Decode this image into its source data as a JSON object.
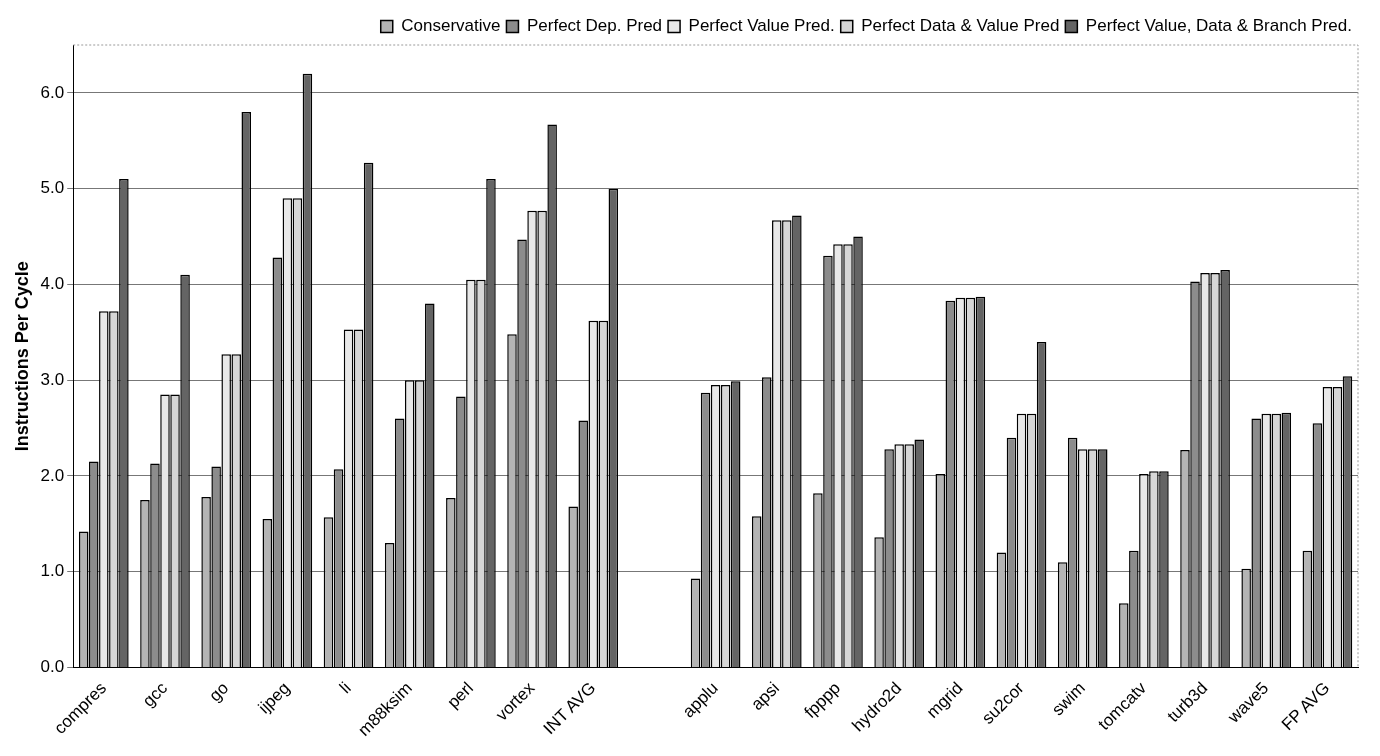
{
  "chart_data": {
    "type": "bar",
    "ylabel": "Instructions Per Cycle",
    "categories": [
      "compres",
      "gcc",
      "go",
      "ijpeg",
      "li",
      "m88ksim",
      "perl",
      "vortex",
      "INT AVG",
      null,
      "applu",
      "apsi",
      "fpppp",
      "hydro2d",
      "mgrid",
      "su2cor",
      "swim",
      "tomcatv",
      "turb3d",
      "wave5",
      "FP AVG"
    ],
    "series": [
      {
        "name": "Conservative",
        "color": "#b4b4b4",
        "values": [
          1.42,
          1.75,
          1.78,
          1.55,
          1.57,
          1.3,
          1.77,
          3.48,
          1.68,
          null,
          0.93,
          1.58,
          1.82,
          1.36,
          2.02,
          1.2,
          1.1,
          0.67,
          2.27,
          1.03,
          1.22
        ]
      },
      {
        "name": "Perfect Dep. Pred",
        "color": "#8c8c8c",
        "values": [
          2.15,
          2.13,
          2.1,
          4.28,
          2.07,
          2.6,
          2.83,
          4.47,
          2.58,
          null,
          2.87,
          3.03,
          4.3,
          2.28,
          3.83,
          2.4,
          2.4,
          1.22,
          4.03,
          2.6,
          2.55
        ]
      },
      {
        "name": "Perfect Value Pred.",
        "color": "#e8e8e8",
        "values": [
          3.72,
          2.85,
          3.27,
          4.9,
          3.53,
          3.0,
          4.05,
          4.77,
          3.62,
          null,
          2.95,
          4.67,
          4.42,
          2.33,
          3.86,
          2.65,
          2.28,
          2.02,
          4.12,
          2.65,
          2.93
        ]
      },
      {
        "name": "Perfect Data & Value Pred",
        "color": "#d6d6d6",
        "values": [
          3.72,
          2.85,
          3.27,
          4.9,
          3.53,
          3.0,
          4.05,
          4.77,
          3.62,
          null,
          2.95,
          4.67,
          4.42,
          2.33,
          3.86,
          2.65,
          2.28,
          2.05,
          4.12,
          2.65,
          2.93
        ]
      },
      {
        "name": "Perfect Value, Data & Branch Pred.",
        "color": "#646464",
        "values": [
          5.1,
          4.1,
          5.8,
          6.2,
          5.27,
          3.8,
          5.1,
          5.67,
          5.0,
          null,
          2.99,
          4.72,
          4.5,
          2.38,
          3.87,
          3.4,
          2.28,
          2.05,
          4.15,
          2.66,
          3.04
        ]
      }
    ],
    "ylim": [
      0,
      6.5
    ],
    "yticks": [
      {
        "value": 0,
        "label": "0.0"
      },
      {
        "value": 1,
        "label": "1.0"
      },
      {
        "value": 2,
        "label": "2.0"
      },
      {
        "value": 3,
        "label": "3.0"
      },
      {
        "value": 4,
        "label": "4.0"
      },
      {
        "value": 5,
        "label": "5.0"
      },
      {
        "value": 6,
        "label": "6.0"
      }
    ],
    "grid": "y",
    "legend": "top right"
  }
}
